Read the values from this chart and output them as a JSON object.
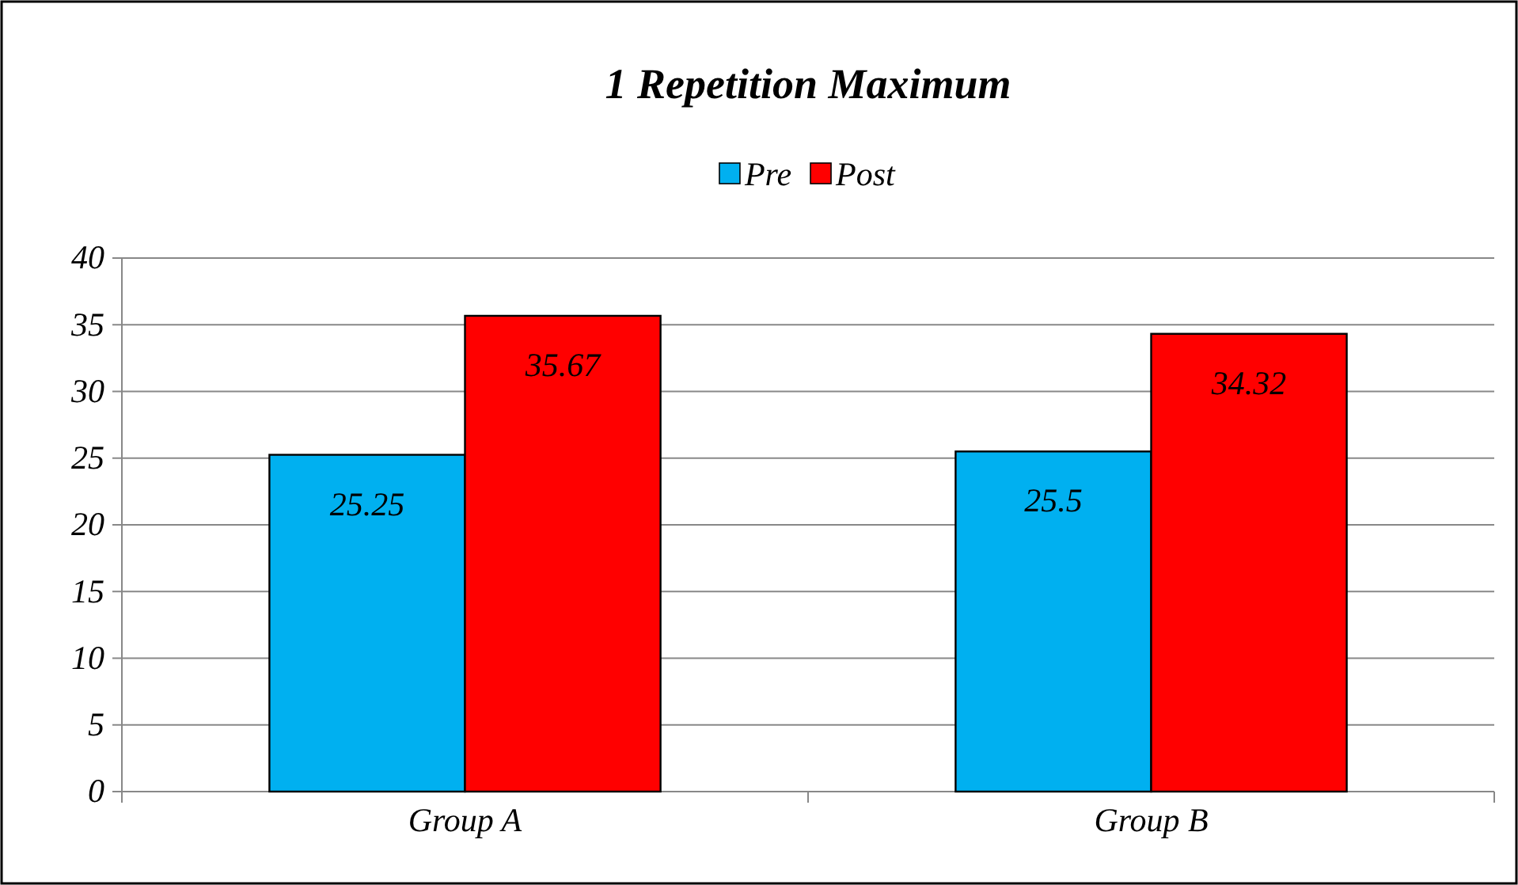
{
  "chart_data": {
    "type": "bar",
    "title": "1 Repetition Maximum",
    "categories": [
      "Group A",
      "Group B"
    ],
    "series": [
      {
        "name": "Pre",
        "color": "#00b0f0",
        "values": [
          25.25,
          25.5
        ]
      },
      {
        "name": "Post",
        "color": "#ff0000",
        "values": [
          35.67,
          34.32
        ]
      }
    ],
    "ylim": [
      0,
      40
    ],
    "yticks": [
      0,
      5,
      10,
      15,
      20,
      25,
      30,
      35,
      40
    ],
    "grid": "y",
    "legend": "top",
    "data_labels": true
  }
}
